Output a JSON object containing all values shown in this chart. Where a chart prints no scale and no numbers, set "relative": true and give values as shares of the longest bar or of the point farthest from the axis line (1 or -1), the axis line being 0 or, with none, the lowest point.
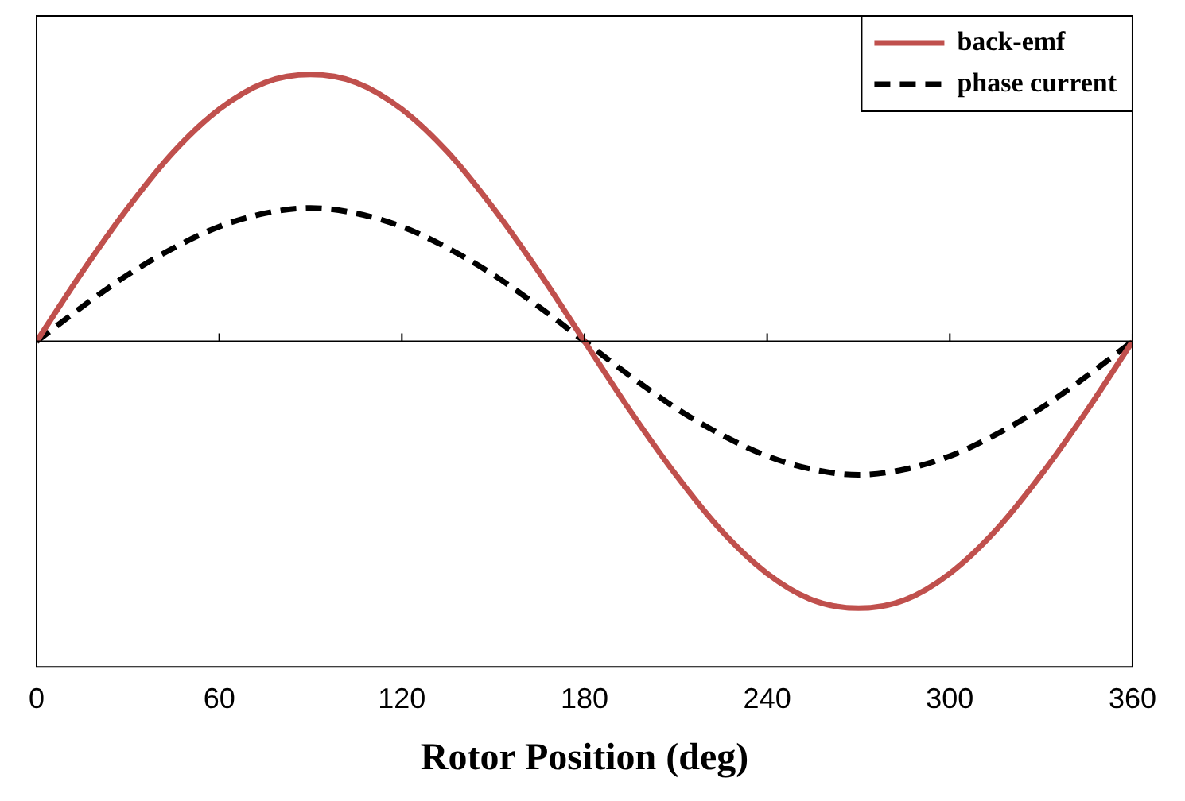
{
  "chart_data": {
    "type": "line",
    "xlabel": "Rotor Position (deg)",
    "relative": true,
    "x": [
      0,
      15,
      30,
      45,
      60,
      75,
      90,
      105,
      120,
      135,
      150,
      165,
      180,
      195,
      210,
      225,
      240,
      255,
      270,
      285,
      300,
      315,
      330,
      345,
      360
    ],
    "xlim": [
      0,
      360
    ],
    "xticks": [
      0,
      60,
      120,
      180,
      240,
      300,
      360
    ],
    "series": [
      {
        "name": "back-emf",
        "color": "#c0504d",
        "line_style": "solid",
        "values": [
          0,
          0.26,
          0.5,
          0.71,
          0.87,
          0.97,
          1,
          0.97,
          0.87,
          0.71,
          0.5,
          0.26,
          0,
          -0.26,
          -0.5,
          -0.71,
          -0.87,
          -0.97,
          -1,
          -0.97,
          -0.87,
          -0.71,
          -0.5,
          -0.26,
          0
        ]
      },
      {
        "name": "phase current",
        "color": "#000000",
        "line_style": "dashed",
        "values": [
          0,
          0.13,
          0.25,
          0.35,
          0.43,
          0.48,
          0.5,
          0.48,
          0.43,
          0.35,
          0.25,
          0.13,
          0,
          -0.13,
          -0.25,
          -0.35,
          -0.43,
          -0.48,
          -0.5,
          -0.48,
          -0.43,
          -0.35,
          -0.25,
          -0.13,
          0
        ]
      }
    ],
    "grid": false,
    "legend": "top right",
    "marker": "none"
  }
}
